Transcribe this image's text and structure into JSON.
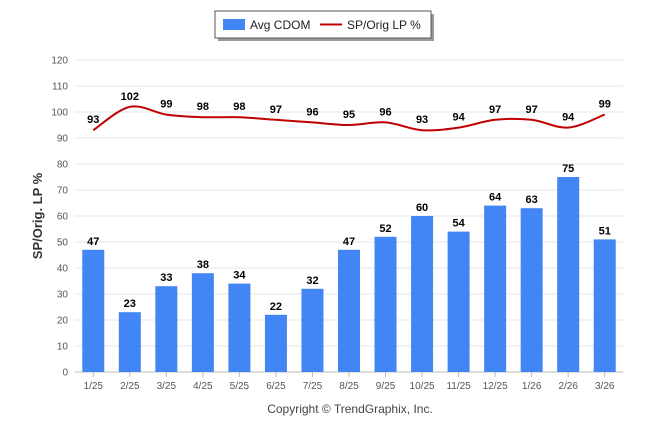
{
  "chart_data": {
    "type": "bar",
    "categories": [
      "1/25",
      "2/25",
      "3/25",
      "4/25",
      "5/25",
      "6/25",
      "7/25",
      "8/25",
      "9/25",
      "10/25",
      "11/25",
      "12/25",
      "1/26",
      "2/26",
      "3/26"
    ],
    "series": [
      {
        "name": "Avg CDOM",
        "type": "bar",
        "color": "#4285f4",
        "values": [
          47,
          23,
          33,
          38,
          34,
          22,
          32,
          47,
          52,
          60,
          54,
          64,
          63,
          75,
          51
        ]
      },
      {
        "name": "SP/Orig LP %",
        "type": "line",
        "color": "#c00000",
        "values": [
          93,
          102,
          99,
          98,
          98,
          97,
          96,
          95,
          96,
          93,
          94,
          97,
          97,
          94,
          99
        ]
      }
    ],
    "ylabel": "SP/Orig. LP %",
    "ylim": [
      0,
      120
    ],
    "yticks": [
      0,
      10,
      20,
      30,
      40,
      50,
      60,
      70,
      80,
      90,
      100,
      110,
      120
    ],
    "grid": true,
    "legend_position": "top-center"
  },
  "footer": {
    "copyright": "Copyright © TrendGraphix, Inc."
  }
}
